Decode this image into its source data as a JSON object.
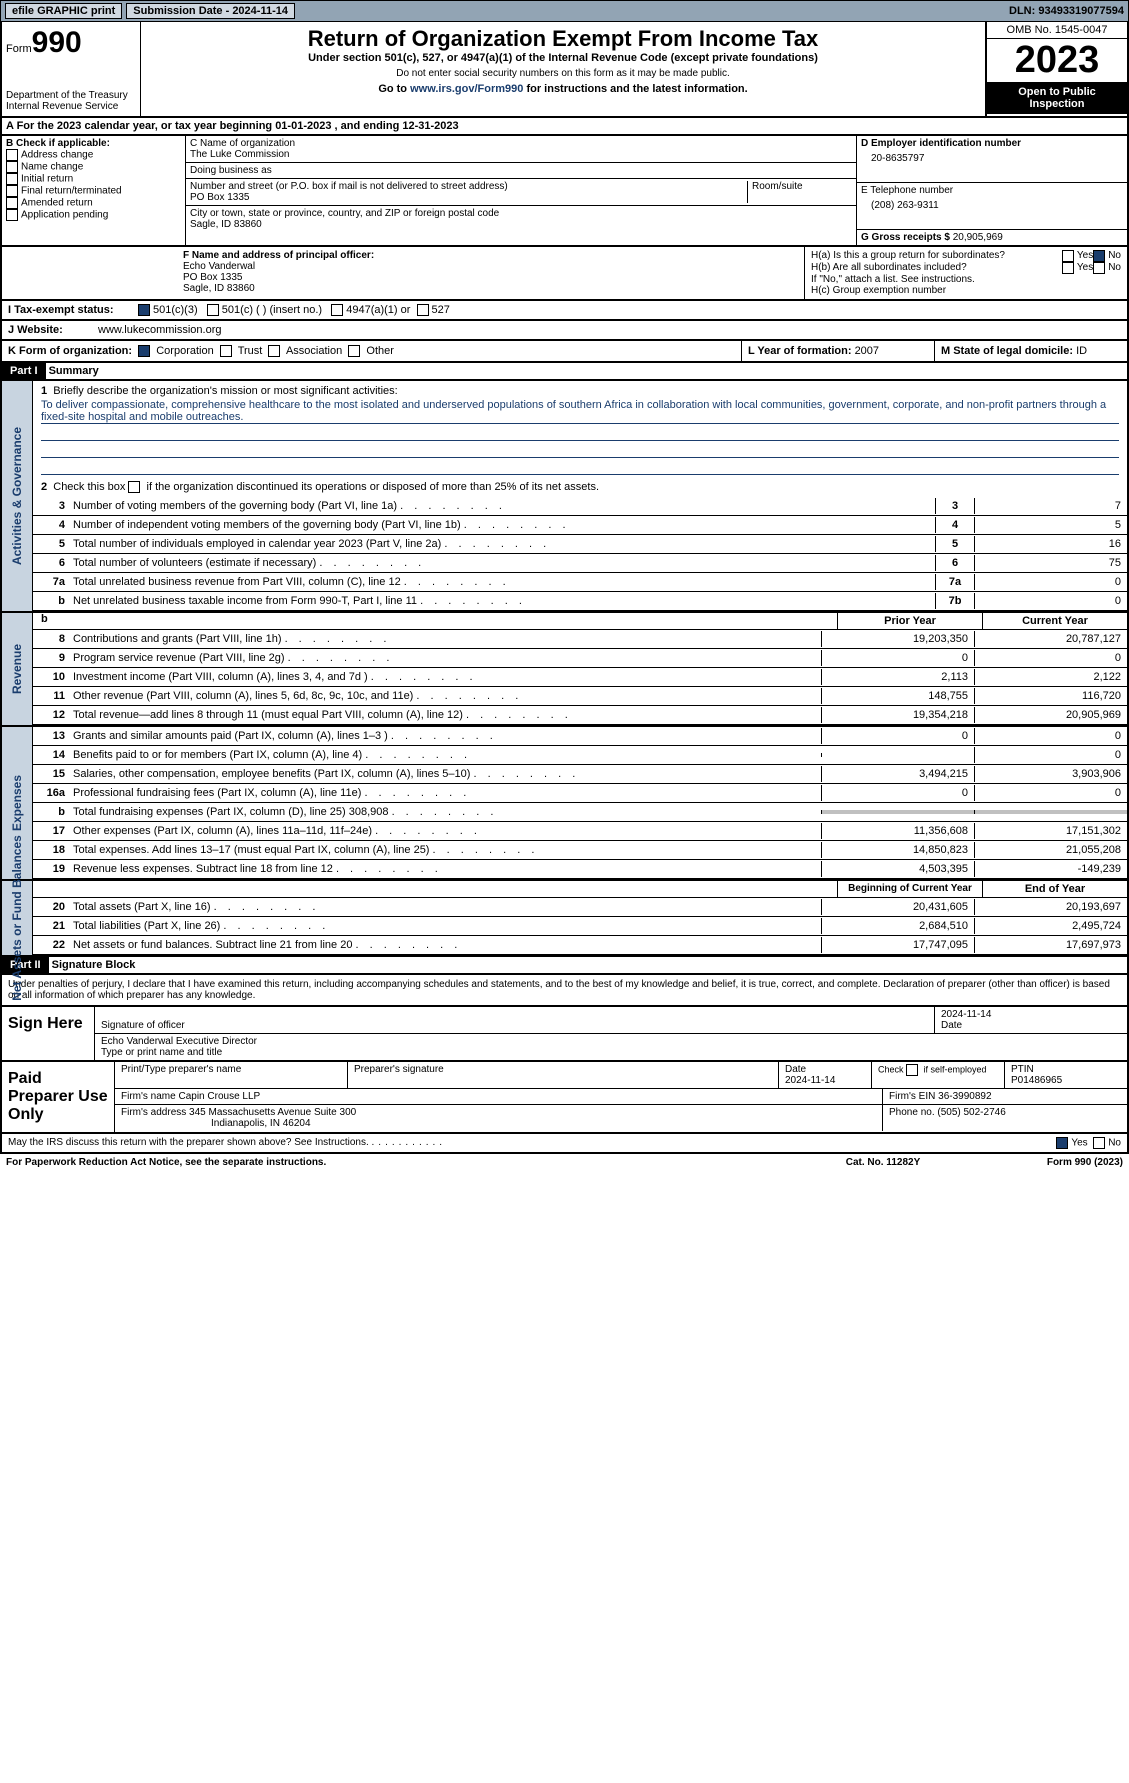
{
  "topbar": {
    "efile": "efile GRAPHIC print",
    "sub_label": "Submission Date - 2024-11-14",
    "dln": "DLN: 93493319077594"
  },
  "header": {
    "form_prefix": "Form",
    "form_no": "990",
    "title": "Return of Organization Exempt From Income Tax",
    "sub1": "Under section 501(c), 527, or 4947(a)(1) of the Internal Revenue Code (except private foundations)",
    "sub2": "Do not enter social security numbers on this form as it may be made public.",
    "sub3": "Go to ",
    "link": "www.irs.gov/Form990",
    "sub3b": " for instructions and the latest information.",
    "dept": "Department of the Treasury",
    "irs": "Internal Revenue Service",
    "omb": "OMB No. 1545-0047",
    "year": "2023",
    "open": "Open to Public Inspection"
  },
  "rowA": {
    "text": "A For the 2023 calendar year, or tax year beginning 01-01-2023   , and ending 12-31-2023"
  },
  "boxB": {
    "label": "B Check if applicable:",
    "items": [
      "Address change",
      "Name change",
      "Initial return",
      "Final return/terminated",
      "Amended return",
      "Application pending"
    ]
  },
  "boxC": {
    "name_lbl": "C Name of organization",
    "name": "The Luke Commission",
    "dba_lbl": "Doing business as",
    "dba": "",
    "street_lbl": "Number and street (or P.O. box if mail is not delivered to street address)",
    "room_lbl": "Room/suite",
    "street": "PO Box 1335",
    "city_lbl": "City or town, state or province, country, and ZIP or foreign postal code",
    "city": "Sagle, ID  83860"
  },
  "boxD": {
    "lbl": "D Employer identification number",
    "val": "20-8635797"
  },
  "boxE": {
    "lbl": "E Telephone number",
    "val": "(208) 263-9311"
  },
  "boxG": {
    "lbl": "G Gross receipts $ ",
    "val": "20,905,969"
  },
  "boxF": {
    "lbl": "F  Name and address of principal officer:",
    "l1": "Echo Vanderwal",
    "l2": "PO Box 1335",
    "l3": "Sagle, ID  83860"
  },
  "boxH": {
    "a": "H(a)  Is this a group return for subordinates?",
    "a_yes": "Yes",
    "a_no": "No",
    "b": "H(b)  Are all subordinates included?",
    "b_note": "If \"No,\" attach a list. See instructions.",
    "c": "H(c)  Group exemption number "
  },
  "rowI": {
    "lbl": "I    Tax-exempt status:",
    "o1": "501(c)(3)",
    "o2": "501(c) (  ) (insert no.)",
    "o3": "4947(a)(1) or",
    "o4": "527"
  },
  "rowJ": {
    "lbl": "J   Website: ",
    "val": "www.lukecommission.org"
  },
  "rowK": {
    "k": "K Form of organization:",
    "ko": [
      "Corporation",
      "Trust",
      "Association",
      "Other"
    ],
    "l": "L Year of formation: ",
    "lv": "2007",
    "m": "M State of legal domicile: ",
    "mv": "ID"
  },
  "part1": {
    "tag": "Part I",
    "title": "Summary"
  },
  "ag": {
    "side": "Activities & Governance",
    "l1": "Briefly describe the organization's mission or most significant activities:",
    "mission": "To deliver compassionate, comprehensive healthcare to the most isolated and underserved populations of southern Africa in collaboration with local communities, government, corporate, and non-profit partners through a fixed-site hospital and mobile outreaches.",
    "l2": "Check this box      if the organization discontinued its operations or disposed of more than 25% of its net assets.",
    "rows": [
      {
        "n": "3",
        "d": "Number of voting members of the governing body (Part VI, line 1a)",
        "nc": "3",
        "v": "7"
      },
      {
        "n": "4",
        "d": "Number of independent voting members of the governing body (Part VI, line 1b)",
        "nc": "4",
        "v": "5"
      },
      {
        "n": "5",
        "d": "Total number of individuals employed in calendar year 2023 (Part V, line 2a)",
        "nc": "5",
        "v": "16"
      },
      {
        "n": "6",
        "d": "Total number of volunteers (estimate if necessary)",
        "nc": "6",
        "v": "75"
      },
      {
        "n": "7a",
        "d": "Total unrelated business revenue from Part VIII, column (C), line 12",
        "nc": "7a",
        "v": "0"
      },
      {
        "n": "b",
        "d": "Net unrelated business taxable income from Form 990-T, Part I, line 11",
        "nc": "7b",
        "v": "0"
      }
    ]
  },
  "rev": {
    "side": "Revenue",
    "h1": "Prior Year",
    "h2": "Current Year",
    "rows": [
      {
        "n": "8",
        "d": "Contributions and grants (Part VIII, line 1h)",
        "v1": "19,203,350",
        "v2": "20,787,127"
      },
      {
        "n": "9",
        "d": "Program service revenue (Part VIII, line 2g)",
        "v1": "0",
        "v2": "0"
      },
      {
        "n": "10",
        "d": "Investment income (Part VIII, column (A), lines 3, 4, and 7d )",
        "v1": "2,113",
        "v2": "2,122"
      },
      {
        "n": "11",
        "d": "Other revenue (Part VIII, column (A), lines 5, 6d, 8c, 9c, 10c, and 11e)",
        "v1": "148,755",
        "v2": "116,720"
      },
      {
        "n": "12",
        "d": "Total revenue—add lines 8 through 11 (must equal Part VIII, column (A), line 12)",
        "v1": "19,354,218",
        "v2": "20,905,969"
      }
    ]
  },
  "exp": {
    "side": "Expenses",
    "rows": [
      {
        "n": "13",
        "d": "Grants and similar amounts paid (Part IX, column (A), lines 1–3 )",
        "v1": "0",
        "v2": "0"
      },
      {
        "n": "14",
        "d": "Benefits paid to or for members (Part IX, column (A), line 4)",
        "v1": "",
        "v2": "0"
      },
      {
        "n": "15",
        "d": "Salaries, other compensation, employee benefits (Part IX, column (A), lines 5–10)",
        "v1": "3,494,215",
        "v2": "3,903,906"
      },
      {
        "n": "16a",
        "d": "Professional fundraising fees (Part IX, column (A), line 11e)",
        "v1": "0",
        "v2": "0"
      },
      {
        "n": "b",
        "d": "Total fundraising expenses (Part IX, column (D), line 25) 308,908",
        "v1": "grey",
        "v2": "grey"
      },
      {
        "n": "17",
        "d": "Other expenses (Part IX, column (A), lines 11a–11d, 11f–24e)",
        "v1": "11,356,608",
        "v2": "17,151,302"
      },
      {
        "n": "18",
        "d": "Total expenses. Add lines 13–17 (must equal Part IX, column (A), line 25)",
        "v1": "14,850,823",
        "v2": "21,055,208"
      },
      {
        "n": "19",
        "d": "Revenue less expenses. Subtract line 18 from line 12",
        "v1": "4,503,395",
        "v2": "-149,239"
      }
    ]
  },
  "na": {
    "side": "Net Assets or Fund Balances",
    "h1": "Beginning of Current Year",
    "h2": "End of Year",
    "rows": [
      {
        "n": "20",
        "d": "Total assets (Part X, line 16)",
        "v1": "20,431,605",
        "v2": "20,193,697"
      },
      {
        "n": "21",
        "d": "Total liabilities (Part X, line 26)",
        "v1": "2,684,510",
        "v2": "2,495,724"
      },
      {
        "n": "22",
        "d": "Net assets or fund balances. Subtract line 21 from line 20",
        "v1": "17,747,095",
        "v2": "17,697,973"
      }
    ]
  },
  "part2": {
    "tag": "Part II",
    "title": "Signature Block"
  },
  "sig": {
    "decl": "Under penalties of perjury, I declare that I have examined this return, including accompanying schedules and statements, and to the best of my knowledge and belief, it is true, correct, and complete. Declaration of preparer (other than officer) is based on all information of which preparer has any knowledge.",
    "here": "Sign Here",
    "sig_lbl": "Signature of officer",
    "date_lbl": "Date",
    "date": "2024-11-14",
    "name": "Echo Vanderwal  Executive Director",
    "name_lbl": "Type or print name and title"
  },
  "paid": {
    "here": "Paid Preparer Use Only",
    "h": [
      "Print/Type preparer's name",
      "Preparer's signature",
      "Date",
      "",
      "PTIN"
    ],
    "date": "2024-11-14",
    "self": "Check        if self-employed",
    "ptin": "P01486965",
    "firm_lbl": "Firm's name      ",
    "firm": "Capin Crouse LLP",
    "ein_lbl": "Firm's EIN  ",
    "ein": "36-3990892",
    "addr_lbl": "Firm's address ",
    "addr1": "345 Massachusetts Avenue Suite 300",
    "addr2": "Indianapolis, IN  46204",
    "ph_lbl": "Phone no. ",
    "ph": "(505) 502-2746"
  },
  "foot": {
    "q": "May the IRS discuss this return with the preparer shown above? See Instructions.",
    "yes": "Yes",
    "no": "No",
    "pra": "For Paperwork Reduction Act Notice, see the separate instructions.",
    "cat": "Cat. No. 11282Y",
    "form": "Form 990 (2023)"
  }
}
